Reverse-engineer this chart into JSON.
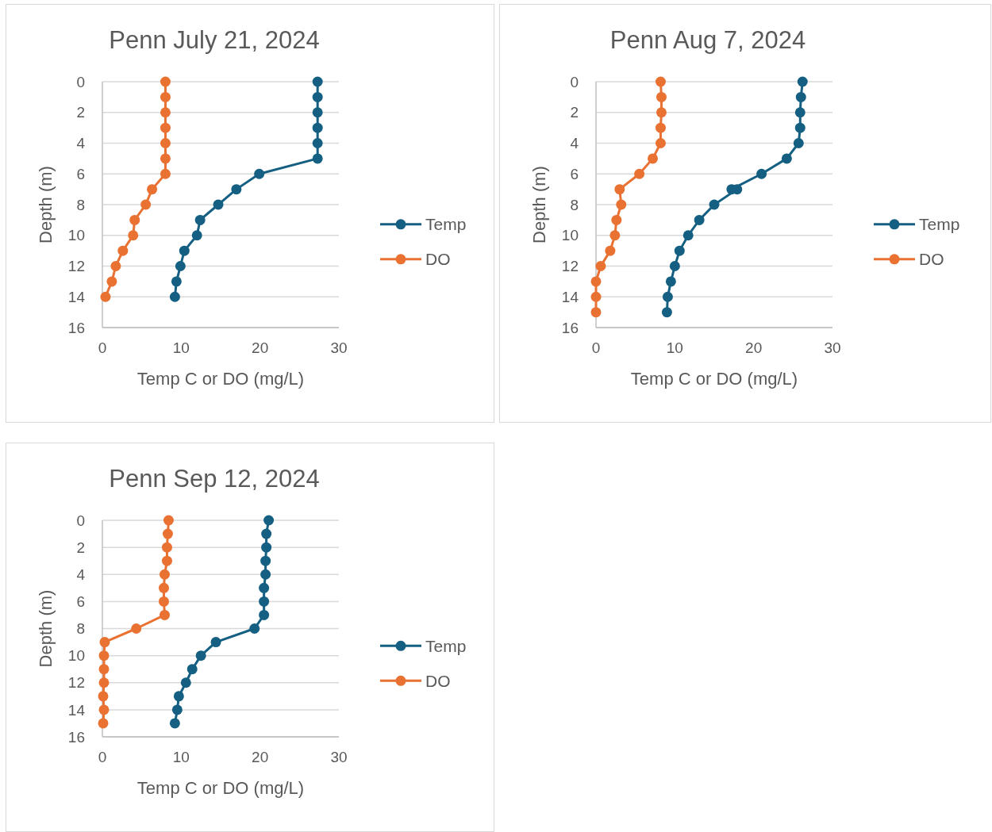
{
  "chart_data": [
    {
      "type": "line",
      "title": "Penn July 21, 2024",
      "xlabel": "Temp C or DO (mg/L)",
      "ylabel": "Depth (m)",
      "xlim": [
        0,
        30
      ],
      "xticks": [
        0,
        10,
        20,
        30
      ],
      "ylim": [
        16,
        0
      ],
      "yticks": [
        0,
        2,
        4,
        6,
        8,
        10,
        12,
        14,
        16
      ],
      "grid": "y",
      "legend": "right",
      "marker": "circle",
      "series": [
        {
          "name": "Temp",
          "color": "#156082",
          "x": [
            27.3,
            27.3,
            27.3,
            27.3,
            27.3,
            27.3,
            19.9,
            17.0,
            14.7,
            12.4,
            12.0,
            10.4,
            9.9,
            9.4,
            9.2
          ],
          "values": [
            0,
            1,
            2,
            3,
            4,
            5,
            6,
            7,
            8,
            9,
            10,
            11,
            12,
            13,
            14
          ]
        },
        {
          "name": "DO",
          "color": "#e97132",
          "x": [
            8.0,
            8.0,
            8.0,
            8.0,
            8.0,
            8.0,
            8.0,
            6.3,
            5.5,
            4.1,
            3.9,
            2.6,
            1.7,
            1.2,
            0.4
          ],
          "values": [
            0,
            1,
            2,
            3,
            4,
            5,
            6,
            7,
            8,
            9,
            10,
            11,
            12,
            13,
            14
          ]
        }
      ]
    },
    {
      "type": "line",
      "title": "Penn Aug 7, 2024",
      "xlabel": "Temp C or DO (mg/L)",
      "ylabel": "Depth (m)",
      "xlim": [
        0,
        30
      ],
      "xticks": [
        0,
        10,
        20,
        30
      ],
      "ylim": [
        16,
        0
      ],
      "yticks": [
        0,
        2,
        4,
        6,
        8,
        10,
        12,
        14,
        16
      ],
      "grid": "y",
      "legend": "right",
      "marker": "circle",
      "series": [
        {
          "name": "Temp",
          "color": "#156082",
          "x": [
            26.2,
            26.0,
            25.9,
            25.9,
            25.7,
            24.2,
            21.0,
            17.2,
            17.9,
            15.0,
            13.1,
            11.7,
            10.6,
            10.0,
            9.5,
            9.1,
            9.0
          ],
          "values": [
            0,
            1,
            2,
            3,
            4,
            5,
            6,
            7,
            7,
            8,
            9,
            10,
            11,
            12,
            13,
            14,
            15
          ]
        },
        {
          "name": "DO",
          "color": "#e97132",
          "x": [
            8.2,
            8.3,
            8.3,
            8.2,
            8.2,
            7.2,
            5.5,
            3.0,
            3.2,
            2.6,
            2.4,
            1.8,
            0.6,
            0.0,
            0.0,
            0.0
          ],
          "values": [
            0,
            1,
            2,
            3,
            4,
            5,
            6,
            7,
            8,
            9,
            10,
            11,
            12,
            13,
            14,
            15
          ]
        }
      ]
    },
    {
      "type": "line",
      "title": "Penn Sep 12, 2024",
      "xlabel": "Temp C or DO (mg/L)",
      "ylabel": "Depth (m)",
      "xlim": [
        0,
        30
      ],
      "xticks": [
        0,
        10,
        20,
        30
      ],
      "ylim": [
        16,
        0
      ],
      "yticks": [
        0,
        2,
        4,
        6,
        8,
        10,
        12,
        14,
        16
      ],
      "grid": "y",
      "legend": "right",
      "marker": "circle",
      "series": [
        {
          "name": "Temp",
          "color": "#156082",
          "x": [
            21.1,
            20.8,
            20.8,
            20.7,
            20.7,
            20.5,
            20.5,
            20.5,
            19.3,
            14.4,
            12.5,
            11.4,
            10.6,
            9.7,
            9.5,
            9.2
          ],
          "values": [
            0,
            1,
            2,
            3,
            4,
            5,
            6,
            7,
            8,
            9,
            10,
            11,
            12,
            13,
            14,
            15
          ]
        },
        {
          "name": "DO",
          "color": "#e97132",
          "x": [
            8.4,
            8.3,
            8.2,
            8.2,
            7.9,
            7.8,
            7.8,
            7.9,
            4.3,
            0.3,
            0.2,
            0.2,
            0.2,
            0.1,
            0.2,
            0.1
          ],
          "values": [
            0,
            1,
            2,
            3,
            4,
            5,
            6,
            7,
            8,
            9,
            10,
            11,
            12,
            13,
            14,
            15
          ]
        }
      ]
    }
  ]
}
